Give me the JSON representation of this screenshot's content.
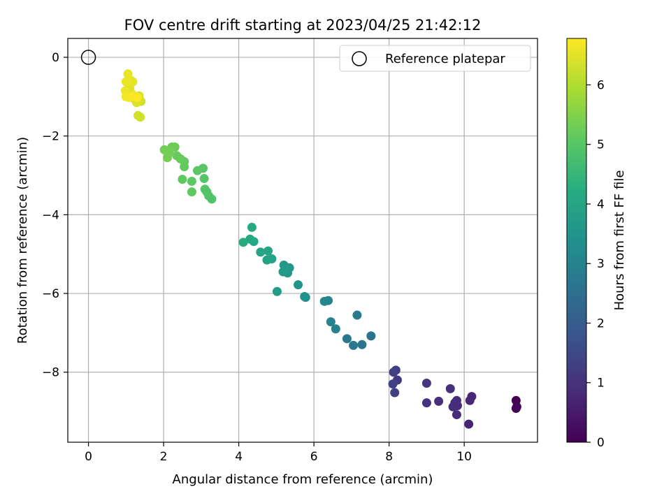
{
  "chart_data": {
    "type": "scatter",
    "title": "FOV centre drift starting at 2023/04/25 21:42:12",
    "xlabel": "Angular distance from reference (arcmin)",
    "ylabel": "Rotation from reference (arcmin)",
    "xlim": [
      -0.55,
      11.95
    ],
    "ylim": [
      -9.78,
      0.48
    ],
    "xticks": [
      0,
      2,
      4,
      6,
      8,
      10
    ],
    "yticks": [
      0,
      -2,
      -4,
      -6,
      -8
    ],
    "grid": true,
    "legend": {
      "location": "upper right",
      "entries": [
        "Reference platepar"
      ]
    },
    "reference": {
      "name": "Reference platepar",
      "x": 0,
      "y": 0
    },
    "colorbar": {
      "label": "Hours from first FF file",
      "colormap": "viridis",
      "range": [
        0,
        6.78
      ],
      "ticks": [
        0,
        1,
        2,
        3,
        4,
        5,
        6
      ]
    },
    "points": [
      {
        "x": 11.38,
        "y": -8.72,
        "t": 0.0
      },
      {
        "x": 11.38,
        "y": -8.92,
        "t": 0.05
      },
      {
        "x": 11.4,
        "y": -8.88,
        "t": 0.1
      },
      {
        "x": 10.12,
        "y": -9.32,
        "t": 0.7
      },
      {
        "x": 10.2,
        "y": -8.62,
        "t": 0.72
      },
      {
        "x": 10.15,
        "y": -8.72,
        "t": 0.75
      },
      {
        "x": 9.8,
        "y": -9.08,
        "t": 0.8
      },
      {
        "x": 9.75,
        "y": -8.78,
        "t": 0.82
      },
      {
        "x": 9.8,
        "y": -8.72,
        "t": 0.85
      },
      {
        "x": 9.82,
        "y": -8.85,
        "t": 0.87
      },
      {
        "x": 9.7,
        "y": -8.88,
        "t": 0.9
      },
      {
        "x": 9.63,
        "y": -8.42,
        "t": 0.92
      },
      {
        "x": 9.32,
        "y": -8.74,
        "t": 0.95
      },
      {
        "x": 9.0,
        "y": -8.78,
        "t": 1.0
      },
      {
        "x": 9.0,
        "y": -8.28,
        "t": 1.05
      },
      {
        "x": 8.22,
        "y": -8.2,
        "t": 1.2
      },
      {
        "x": 8.18,
        "y": -7.95,
        "t": 1.25
      },
      {
        "x": 8.12,
        "y": -8.0,
        "t": 1.3
      },
      {
        "x": 8.15,
        "y": -8.52,
        "t": 1.3
      },
      {
        "x": 8.1,
        "y": -8.3,
        "t": 1.35
      },
      {
        "x": 7.52,
        "y": -7.08,
        "t": 2.6
      },
      {
        "x": 7.28,
        "y": -7.3,
        "t": 2.65
      },
      {
        "x": 7.05,
        "y": -7.32,
        "t": 2.7
      },
      {
        "x": 6.88,
        "y": -7.15,
        "t": 2.75
      },
      {
        "x": 7.15,
        "y": -6.55,
        "t": 2.8
      },
      {
        "x": 6.58,
        "y": -6.9,
        "t": 3.0
      },
      {
        "x": 6.45,
        "y": -6.72,
        "t": 3.05
      },
      {
        "x": 6.38,
        "y": -6.18,
        "t": 3.1
      },
      {
        "x": 6.28,
        "y": -6.2,
        "t": 3.15
      },
      {
        "x": 5.78,
        "y": -6.1,
        "t": 3.4
      },
      {
        "x": 5.75,
        "y": -6.08,
        "t": 3.45
      },
      {
        "x": 5.58,
        "y": -5.78,
        "t": 3.5
      },
      {
        "x": 5.35,
        "y": -5.35,
        "t": 3.6
      },
      {
        "x": 5.3,
        "y": -5.48,
        "t": 3.62
      },
      {
        "x": 5.2,
        "y": -5.28,
        "t": 3.65
      },
      {
        "x": 5.18,
        "y": -5.45,
        "t": 3.7
      },
      {
        "x": 5.25,
        "y": -5.38,
        "t": 3.72
      },
      {
        "x": 5.02,
        "y": -5.95,
        "t": 3.75
      },
      {
        "x": 4.88,
        "y": -5.12,
        "t": 3.9
      },
      {
        "x": 4.75,
        "y": -5.15,
        "t": 3.92
      },
      {
        "x": 4.78,
        "y": -4.92,
        "t": 3.95
      },
      {
        "x": 4.58,
        "y": -4.95,
        "t": 4.0
      },
      {
        "x": 4.4,
        "y": -4.68,
        "t": 4.05
      },
      {
        "x": 4.3,
        "y": -4.62,
        "t": 4.1
      },
      {
        "x": 4.35,
        "y": -4.32,
        "t": 4.15
      },
      {
        "x": 4.12,
        "y": -4.7,
        "t": 4.2
      },
      {
        "x": 3.28,
        "y": -3.6,
        "t": 4.9
      },
      {
        "x": 3.2,
        "y": -3.52,
        "t": 4.92
      },
      {
        "x": 3.15,
        "y": -3.42,
        "t": 4.95
      },
      {
        "x": 3.1,
        "y": -3.35,
        "t": 4.97
      },
      {
        "x": 3.08,
        "y": -3.08,
        "t": 5.0
      },
      {
        "x": 3.05,
        "y": -2.82,
        "t": 5.02
      },
      {
        "x": 2.9,
        "y": -2.88,
        "t": 5.05
      },
      {
        "x": 2.75,
        "y": -3.15,
        "t": 5.07
      },
      {
        "x": 2.75,
        "y": -3.42,
        "t": 5.1
      },
      {
        "x": 2.5,
        "y": -3.1,
        "t": 5.12
      },
      {
        "x": 2.55,
        "y": -2.78,
        "t": 5.15
      },
      {
        "x": 2.55,
        "y": -2.65,
        "t": 5.17
      },
      {
        "x": 2.45,
        "y": -2.58,
        "t": 5.2
      },
      {
        "x": 2.35,
        "y": -2.5,
        "t": 5.22
      },
      {
        "x": 2.3,
        "y": -2.28,
        "t": 5.25
      },
      {
        "x": 2.22,
        "y": -2.28,
        "t": 5.27
      },
      {
        "x": 2.15,
        "y": -2.42,
        "t": 5.3
      },
      {
        "x": 2.1,
        "y": -2.55,
        "t": 5.32
      },
      {
        "x": 2.02,
        "y": -2.35,
        "t": 5.35
      },
      {
        "x": 1.38,
        "y": -1.52,
        "t": 6.3
      },
      {
        "x": 1.32,
        "y": -1.48,
        "t": 6.32
      },
      {
        "x": 1.4,
        "y": -1.12,
        "t": 6.35
      },
      {
        "x": 1.35,
        "y": -0.98,
        "t": 6.4
      },
      {
        "x": 1.28,
        "y": -1.15,
        "t": 6.42
      },
      {
        "x": 1.2,
        "y": -1.05,
        "t": 6.45
      },
      {
        "x": 1.15,
        "y": -0.92,
        "t": 6.47
      },
      {
        "x": 1.1,
        "y": -0.78,
        "t": 6.5
      },
      {
        "x": 1.18,
        "y": -0.62,
        "t": 6.52
      },
      {
        "x": 1.12,
        "y": -0.58,
        "t": 6.55
      },
      {
        "x": 1.05,
        "y": -0.42,
        "t": 6.57
      },
      {
        "x": 1.0,
        "y": -0.62,
        "t": 6.6
      },
      {
        "x": 0.98,
        "y": -0.85,
        "t": 6.62
      },
      {
        "x": 1.0,
        "y": -1.0,
        "t": 6.65
      },
      {
        "x": 1.08,
        "y": -1.02,
        "t": 6.7
      },
      {
        "x": 1.2,
        "y": -0.98,
        "t": 6.75
      },
      {
        "x": 1.3,
        "y": -1.02,
        "t": 6.78
      }
    ]
  }
}
